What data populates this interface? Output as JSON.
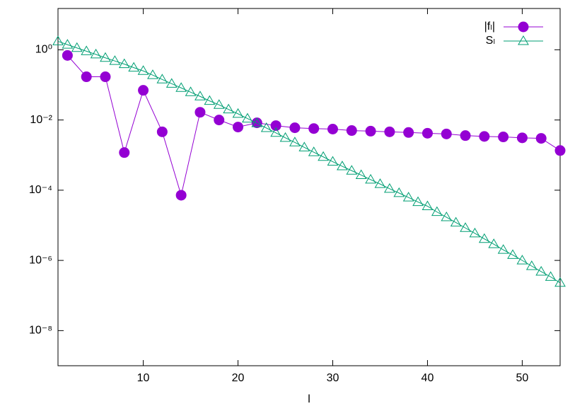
{
  "chart_data": {
    "type": "line",
    "x_label": "l",
    "log_y": true,
    "xlim": [
      1,
      54
    ],
    "ylim": [
      1e-09,
      15
    ],
    "xticks": [
      10,
      20,
      30,
      40,
      50
    ],
    "yticks": [
      {
        "value": 1e-08,
        "label": "10⁻⁸"
      },
      {
        "value": 1e-06,
        "label": "10⁻⁶"
      },
      {
        "value": 0.0001,
        "label": "10⁻⁴"
      },
      {
        "value": 0.01,
        "label": "10⁻²"
      },
      {
        "value": 1,
        "label": "10⁰"
      }
    ],
    "legend": "top-right",
    "series": [
      {
        "name": "|fₗ|",
        "color": "#9400d3",
        "marker": "circle",
        "x": [
          2,
          4,
          6,
          8,
          10,
          12,
          14,
          16,
          18,
          20,
          22,
          24,
          26,
          28,
          30,
          32,
          34,
          36,
          38,
          40,
          42,
          44,
          46,
          48,
          50,
          52,
          54
        ],
        "values": [
          0.69,
          0.17,
          0.17,
          0.00118,
          0.07,
          0.0046,
          7.2e-05,
          0.0166,
          0.01,
          0.0063,
          0.0083,
          0.0069,
          0.006,
          0.0057,
          0.0055,
          0.005,
          0.0048,
          0.0046,
          0.0044,
          0.0042,
          0.004,
          0.0036,
          0.0034,
          0.0033,
          0.0031,
          0.003,
          0.00135
        ]
      },
      {
        "name": "Sₗ",
        "color": "#009e73",
        "marker": "triangle",
        "x": [
          1,
          2,
          3,
          4,
          5,
          6,
          7,
          8,
          9,
          10,
          11,
          12,
          13,
          14,
          15,
          16,
          17,
          18,
          19,
          20,
          21,
          22,
          23,
          24,
          25,
          26,
          27,
          28,
          29,
          30,
          31,
          32,
          33,
          34,
          35,
          36,
          37,
          38,
          39,
          40,
          41,
          42,
          43,
          44,
          45,
          46,
          47,
          48,
          49,
          50,
          51,
          52,
          53,
          54
        ],
        "values": [
          1.74,
          1.4,
          1.13,
          0.91,
          0.74,
          0.59,
          0.48,
          0.39,
          0.31,
          0.25,
          0.19,
          0.143,
          0.108,
          0.082,
          0.062,
          0.047,
          0.035,
          0.027,
          0.02,
          0.015,
          0.011,
          0.0081,
          0.0059,
          0.0043,
          0.0031,
          0.0023,
          0.00166,
          0.00121,
          0.00089,
          0.00065,
          0.00048,
          0.00036,
          0.00027,
          0.0002,
          0.00015,
          0.00011,
          8.3e-05,
          6.2e-05,
          4.6e-05,
          3.5e-05,
          2.4e-05,
          1.7e-05,
          1.2e-05,
          8.4e-06,
          5.9e-06,
          4.1e-06,
          2.9e-06,
          2e-06,
          1.43e-06,
          1e-06,
          6.9e-07,
          4.8e-07,
          3.4e-07,
          2.3e-07
        ]
      }
    ]
  }
}
